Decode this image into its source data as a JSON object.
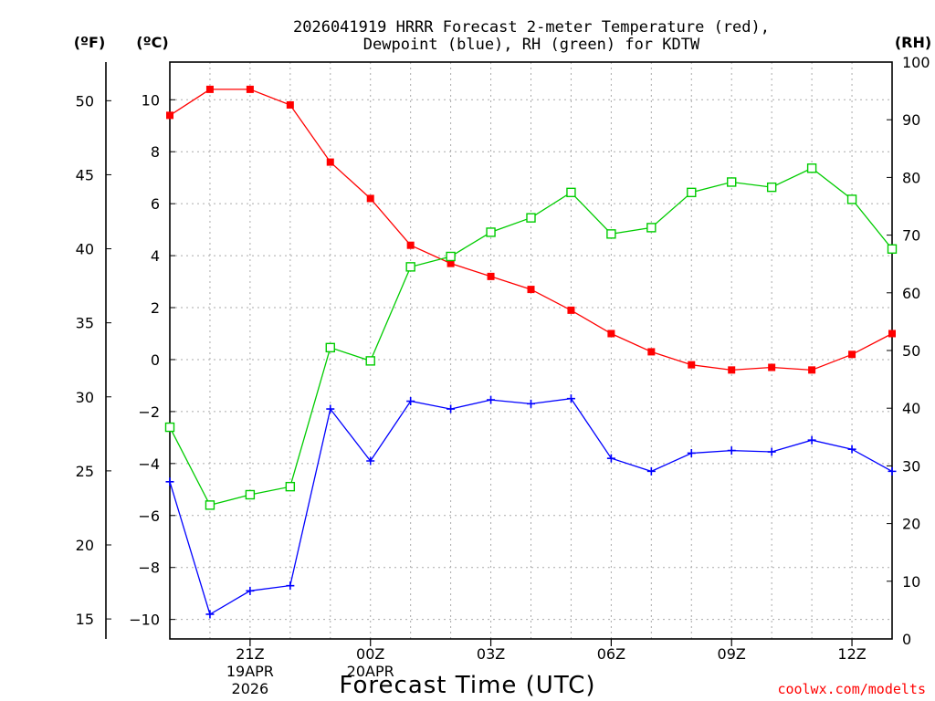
{
  "chart_data": {
    "type": "line",
    "title_lines": [
      "2026041919 HRRR Forecast 2-meter Temperature (red),",
      "Dewpoint (blue), RH (green) for KDTW"
    ],
    "units": {
      "fahrenheit": "(ºF)",
      "celsius": "(ºC)",
      "rh": "(RH)"
    },
    "xlabel": "Forecast Time (UTC)",
    "credit": "coolwx.com/modelts",
    "x_hours": [
      19,
      20,
      21,
      22,
      23,
      24,
      25,
      26,
      27,
      28,
      29,
      30,
      31,
      32,
      33,
      34,
      35,
      36,
      37
    ],
    "xlim": [
      19,
      37
    ],
    "x_ticks": [
      {
        "hour": 21,
        "lines": [
          "21Z",
          "19APR",
          "2026"
        ]
      },
      {
        "hour": 24,
        "lines": [
          "00Z",
          "20APR"
        ]
      },
      {
        "hour": 27,
        "lines": [
          "03Z"
        ]
      },
      {
        "hour": 30,
        "lines": [
          "06Z"
        ]
      },
      {
        "hour": 33,
        "lines": [
          "09Z"
        ]
      },
      {
        "hour": 36,
        "lines": [
          "12Z"
        ]
      }
    ],
    "celsius_axis": {
      "range": [
        -10.75,
        11.45
      ],
      "ticks": [
        -10,
        -8,
        -6,
        -4,
        -2,
        0,
        2,
        4,
        6,
        8,
        10
      ]
    },
    "fahrenheit_axis": {
      "range": [
        13.65,
        52.61
      ],
      "ticks": [
        15,
        20,
        25,
        30,
        35,
        40,
        45,
        50
      ]
    },
    "rh_axis": {
      "range": [
        0,
        100
      ],
      "ticks": [
        0,
        10,
        20,
        30,
        40,
        50,
        60,
        70,
        80,
        90,
        100
      ]
    },
    "grid": true,
    "series": [
      {
        "name": "Temperature",
        "axis": "celsius",
        "color": "#ff0000",
        "marker": "filled-square",
        "values": [
          9.4,
          10.4,
          10.4,
          9.8,
          7.6,
          6.2,
          4.4,
          3.7,
          3.2,
          2.7,
          1.9,
          1.0,
          0.3,
          -0.2,
          -0.4,
          -0.3,
          -0.4,
          0.2,
          1.0
        ]
      },
      {
        "name": "Dewpoint",
        "axis": "celsius",
        "color": "#0000ff",
        "marker": "plus",
        "values": [
          -4.7,
          -9.8,
          -8.9,
          -8.7,
          -1.9,
          -3.9,
          -1.6,
          -1.9,
          -1.55,
          -1.7,
          -1.5,
          -3.8,
          -4.3,
          -3.6,
          -3.5,
          -3.55,
          -3.1,
          -3.45,
          -4.3
        ]
      },
      {
        "name": "RH",
        "axis": "rh",
        "color": "#00cc00",
        "marker": "open-square",
        "values": [
          36.7,
          23.2,
          25.0,
          26.4,
          50.5,
          48.2,
          64.5,
          66.3,
          70.5,
          73.0,
          77.4,
          70.2,
          71.3,
          77.4,
          79.2,
          78.3,
          81.6,
          76.2,
          67.6
        ]
      }
    ]
  }
}
